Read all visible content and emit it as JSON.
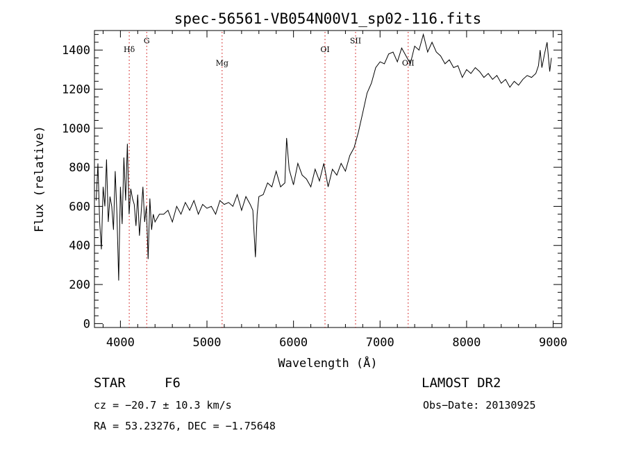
{
  "chart_data": {
    "type": "line",
    "title": "spec-56561-VB054N00V1_sp02-116.fits",
    "xlabel": "Wavelength (Å)",
    "ylabel": "Flux (relative)",
    "xlim": [
      3700,
      9100
    ],
    "ylim": [
      -20,
      1500
    ],
    "xticks": [
      4000,
      5000,
      6000,
      7000,
      8000,
      9000
    ],
    "yticks": [
      0,
      200,
      400,
      600,
      800,
      1000,
      1200,
      1400
    ],
    "grid": false,
    "line_color": "#000000",
    "marker_color": "#cc0000",
    "spectrum": {
      "x": [
        3720,
        3740,
        3760,
        3780,
        3800,
        3820,
        3840,
        3860,
        3880,
        3900,
        3920,
        3940,
        3960,
        3980,
        4000,
        4020,
        4040,
        4060,
        4080,
        4100,
        4120,
        4140,
        4160,
        4180,
        4200,
        4220,
        4240,
        4260,
        4280,
        4300,
        4320,
        4340,
        4360,
        4380,
        4400,
        4450,
        4500,
        4550,
        4600,
        4650,
        4700,
        4750,
        4800,
        4850,
        4900,
        4950,
        5000,
        5050,
        5100,
        5150,
        5200,
        5250,
        5300,
        5350,
        5400,
        5450,
        5500,
        5530,
        5560,
        5580,
        5600,
        5650,
        5700,
        5750,
        5800,
        5850,
        5900,
        5920,
        5950,
        6000,
        6050,
        6100,
        6150,
        6200,
        6250,
        6300,
        6350,
        6400,
        6450,
        6500,
        6550,
        6600,
        6650,
        6700,
        6750,
        6800,
        6850,
        6900,
        6950,
        7000,
        7050,
        7100,
        7150,
        7200,
        7250,
        7300,
        7350,
        7400,
        7450,
        7500,
        7550,
        7600,
        7650,
        7700,
        7750,
        7800,
        7850,
        7900,
        7950,
        8000,
        8050,
        8100,
        8150,
        8200,
        8250,
        8300,
        8350,
        8400,
        8450,
        8500,
        8550,
        8600,
        8650,
        8700,
        8750,
        8800,
        8830,
        8850,
        8870,
        8900,
        8930,
        8960,
        8980
      ],
      "y": [
        630,
        820,
        520,
        380,
        700,
        600,
        840,
        520,
        650,
        600,
        480,
        780,
        560,
        220,
        700,
        510,
        850,
        630,
        920,
        560,
        690,
        640,
        610,
        500,
        660,
        450,
        570,
        700,
        520,
        600,
        330,
        640,
        480,
        560,
        520,
        560,
        560,
        580,
        520,
        600,
        560,
        620,
        580,
        630,
        560,
        610,
        590,
        600,
        560,
        630,
        610,
        620,
        600,
        660,
        580,
        650,
        610,
        580,
        340,
        560,
        650,
        660,
        720,
        700,
        780,
        700,
        720,
        950,
        790,
        710,
        820,
        760,
        740,
        700,
        790,
        730,
        820,
        700,
        790,
        760,
        820,
        780,
        860,
        900,
        980,
        1080,
        1180,
        1230,
        1310,
        1340,
        1330,
        1380,
        1390,
        1340,
        1410,
        1370,
        1330,
        1420,
        1400,
        1480,
        1390,
        1440,
        1390,
        1370,
        1330,
        1350,
        1310,
        1320,
        1260,
        1300,
        1280,
        1310,
        1290,
        1260,
        1280,
        1250,
        1270,
        1230,
        1250,
        1210,
        1240,
        1220,
        1250,
        1270,
        1260,
        1280,
        1320,
        1400,
        1310,
        1380,
        1440,
        1290,
        1360
      ]
    },
    "lines": [
      {
        "label": "Hδ",
        "x": 4102,
        "label_y": 1390
      },
      {
        "label": "G",
        "x": 4304,
        "label_y": 1435
      },
      {
        "label": "Mg",
        "x": 5175,
        "label_y": 1320
      },
      {
        "label": "OI",
        "x": 6364,
        "label_y": 1390
      },
      {
        "label": "SII",
        "x": 6717,
        "label_y": 1435
      },
      {
        "label": "OII",
        "x": 7325,
        "label_y": 1320
      }
    ]
  },
  "info": {
    "type_label": "STAR",
    "subclass": "F6",
    "survey": "LAMOST DR2",
    "cz": "cz = −20.7 ± 10.3 km/s",
    "obs_date": "Obs−Date: 20130925",
    "coords": "RA =  53.23276, DEC =  −1.75648"
  }
}
